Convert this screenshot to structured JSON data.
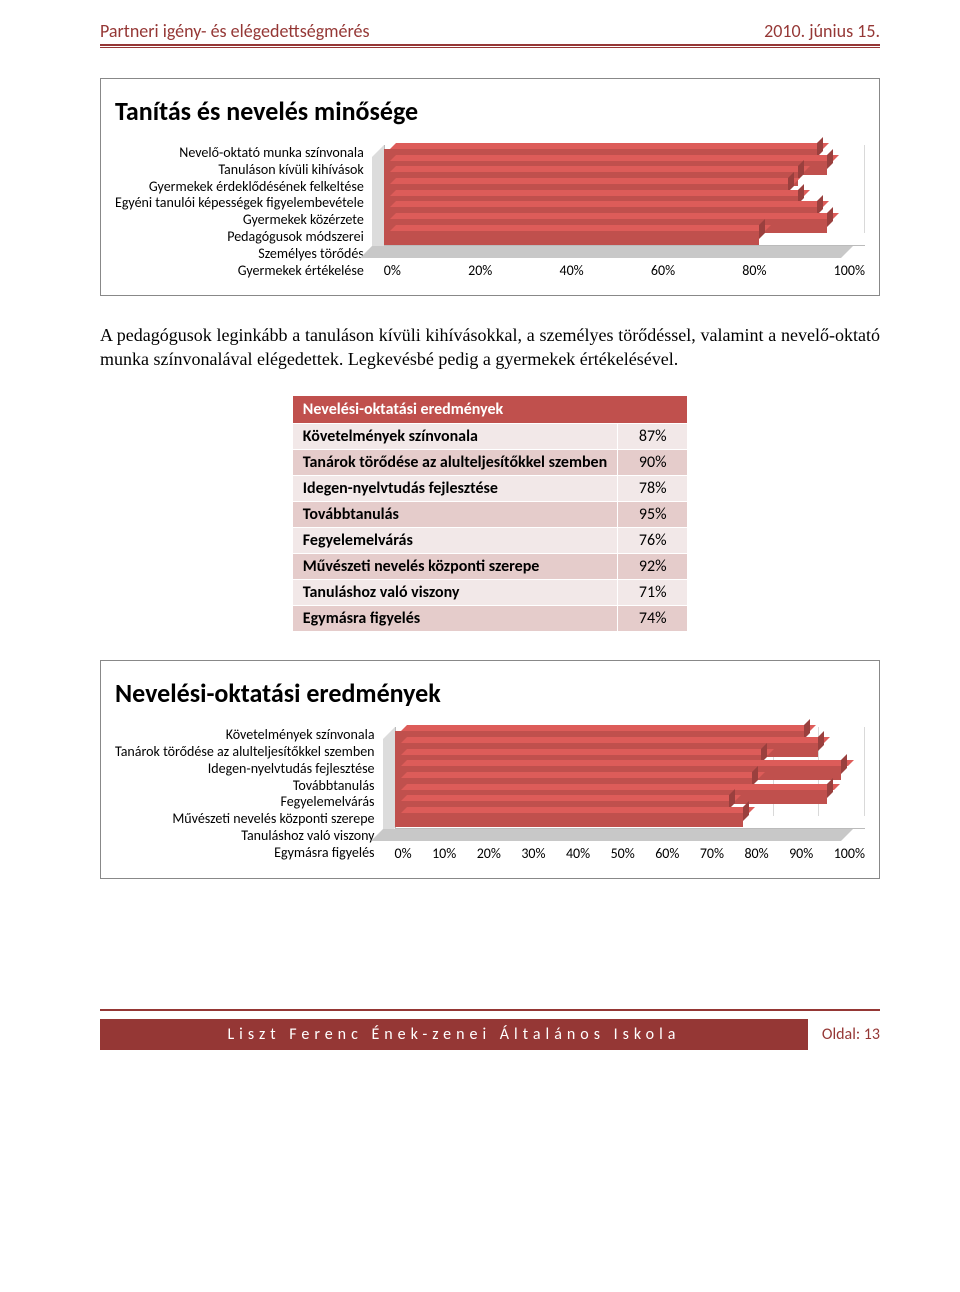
{
  "header": {
    "left": "Partneri igény- és elégedettségmérés",
    "right": "2010. június 15."
  },
  "chart1": {
    "title": "Tanítás és nevelés minősége",
    "type": "bar-horizontal-3d",
    "bar_color": "#c0504d",
    "grid_color": "#d9d9d9",
    "floor_color": "#c8c8c8",
    "xlim": [
      0,
      100
    ],
    "xtick_step": 20,
    "xticks": [
      "0%",
      "20%",
      "40%",
      "60%",
      "80%",
      "100%"
    ],
    "categories": [
      "Nevelő-oktató munka színvonala",
      "Tanuláson kívüli kihívások",
      "Gyermekek érdeklődésének felkeltése",
      "Egyéni tanulói képességek figyelembevétele",
      "Gyermekek közérzete",
      "Pedagógusok módszerei",
      "Személyes törődés",
      "Gyermekek értékelése"
    ],
    "values": [
      90,
      92,
      86,
      84,
      86,
      90,
      92,
      78
    ],
    "label_fontsize": 14
  },
  "paragraph": "A pedagógusok leginkább a tanuláson kívüli kihívásokkal, a személyes törődéssel, valamint a nevelő-oktató munka színvonalával elégedettek. Legkevésbé pedig a gyermekek értékelésével.",
  "table": {
    "header": "Nevelési-oktatási eredmények",
    "header_bg": "#c0504d",
    "header_color": "#ffffff",
    "row_light": "#f2e8e8",
    "row_dark": "#e5cccb",
    "rows": [
      {
        "label": "Követelmények színvonala",
        "value": "87%"
      },
      {
        "label": "Tanárok törődése az alulteljesítőkkel szemben",
        "value": "90%"
      },
      {
        "label": "Idegen-nyelvtudás fejlesztése",
        "value": "78%"
      },
      {
        "label": "Továbbtanulás",
        "value": "95%"
      },
      {
        "label": "Fegyelemelvárás",
        "value": "76%"
      },
      {
        "label": "Művészeti nevelés központi szerepe",
        "value": "92%"
      },
      {
        "label": "Tanuláshoz való viszony",
        "value": "71%"
      },
      {
        "label": "Egymásra figyelés",
        "value": "74%"
      }
    ]
  },
  "chart2": {
    "title": "Nevelési-oktatási eredmények",
    "type": "bar-horizontal-3d",
    "bar_color": "#c0504d",
    "grid_color": "#d9d9d9",
    "floor_color": "#c8c8c8",
    "xlim": [
      0,
      100
    ],
    "xtick_step": 10,
    "xticks": [
      "0%",
      "10%",
      "20%",
      "30%",
      "40%",
      "50%",
      "60%",
      "70%",
      "80%",
      "90%",
      "100%"
    ],
    "categories": [
      "Követelmények színvonala",
      "Tanárok törődése az alulteljesítőkkel szemben",
      "Idegen-nyelvtudás fejlesztése",
      "Továbbtanulás",
      "Fegyelemelvárás",
      "Művészeti nevelés központi szerepe",
      "Tanuláshoz való viszony",
      "Egymásra figyelés"
    ],
    "values": [
      87,
      90,
      78,
      95,
      76,
      92,
      71,
      74
    ],
    "label_fontsize": 14
  },
  "footer": {
    "school": "Liszt Ferenc Ének-zenei Általános Iskola",
    "page_label": "Oldal: 13"
  }
}
